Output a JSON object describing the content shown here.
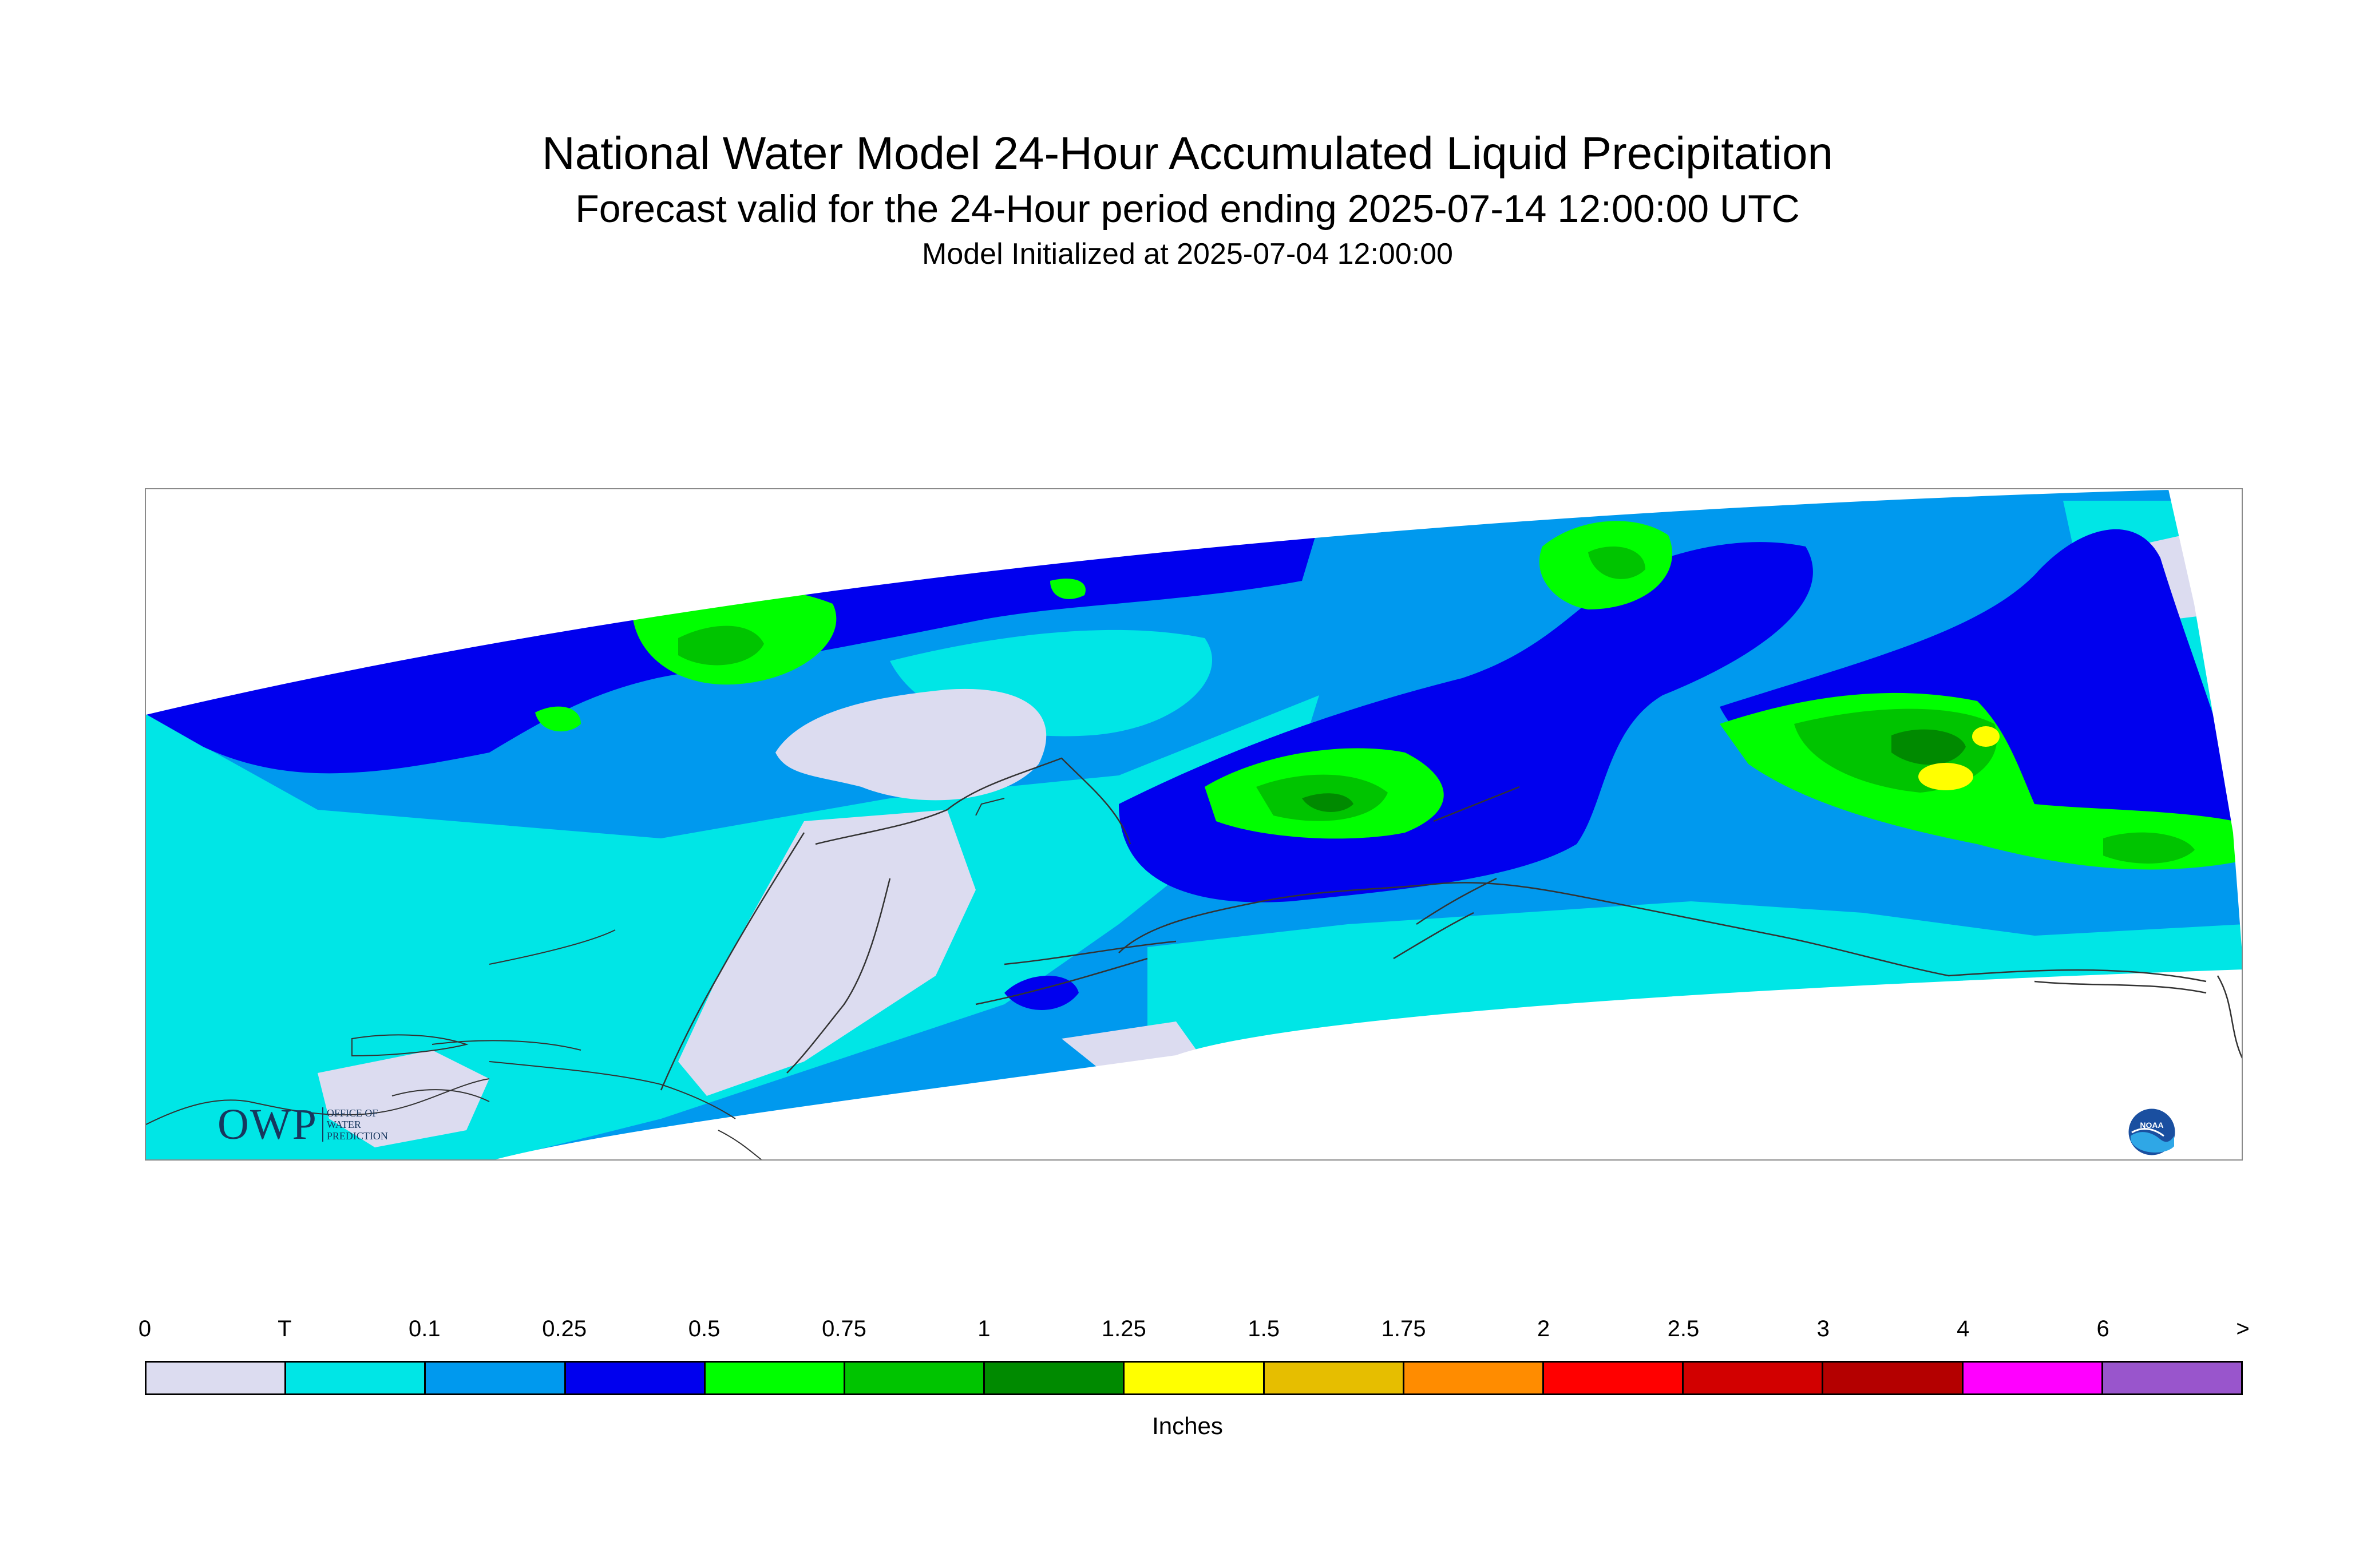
{
  "title": "National Water Model 24-Hour Accumulated Liquid Precipitation",
  "subtitle": "Forecast valid for the 24-Hour period ending 2025-07-14 12:00:00 UTC",
  "init_line": "Model Initialized at 2025-07-04 12:00:00",
  "logos": {
    "owp_big": "OWP",
    "owp_small": [
      "OFFICE OF",
      "WATER",
      "PREDICTION"
    ],
    "noaa": "NOAA"
  },
  "legend": {
    "unit": "Inches",
    "tick_labels": [
      "0",
      "T",
      "0.1",
      "0.25",
      "0.5",
      "0.75",
      "1",
      "1.25",
      "1.5",
      "1.75",
      "2",
      "2.5",
      "3",
      "4",
      "6",
      ">"
    ],
    "colors": [
      "#dcdcf0",
      "#00e6e6",
      "#0099ee",
      "#0000ee",
      "#00ff00",
      "#00c400",
      "#008a00",
      "#ffff00",
      "#e6be00",
      "#ff8c00",
      "#ff0000",
      "#d20000",
      "#b40000",
      "#ff00ff",
      "#9955cc"
    ]
  },
  "map_colors": {
    "trace": "#dcdcf0",
    "t_0.1": "#00e6e6",
    "0.1_0.25": "#0099ee",
    "0.25_0.5": "#0000ee",
    "0.5_0.75": "#00ff00",
    "0.75_1": "#00c400",
    "1_1.25": "#008a00",
    "1.25_1.5": "#ffff00"
  }
}
